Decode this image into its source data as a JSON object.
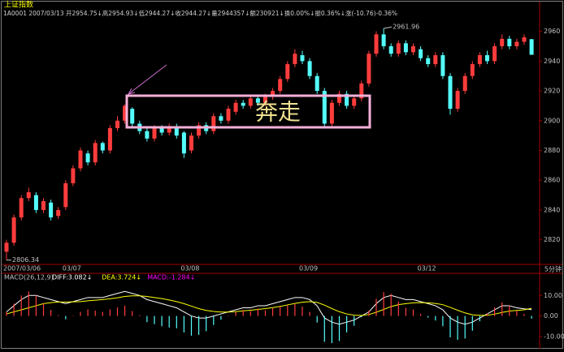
{
  "title": "上证指数",
  "info": "1A0001 2007/03/13 开2954.75↓高2954.93↓低2944.27↓收2944.27↓量2944357↓额230921↓换0.00%↓振0.36%↓涨(-10.76)-0.36%",
  "chart_data": [
    {
      "type": "candlestick",
      "categories": [
        "2007/03/06",
        null,
        null,
        null,
        null,
        null,
        null,
        null,
        "03/07",
        null,
        null,
        null,
        null,
        null,
        null,
        null,
        null,
        null,
        null,
        null,
        null,
        null,
        null,
        null,
        "03/08",
        null,
        null,
        null,
        null,
        null,
        null,
        null,
        null,
        null,
        null,
        null,
        null,
        null,
        null,
        null,
        "03/09",
        null,
        null,
        null,
        null,
        null,
        null,
        null,
        null,
        null,
        null,
        null,
        null,
        null,
        null,
        null,
        "03/12",
        null,
        null,
        null,
        null,
        null,
        null,
        null,
        null,
        null,
        null,
        null,
        null,
        null,
        null,
        null
      ],
      "open": [
        2812,
        2818,
        2835,
        2848,
        2850,
        2840,
        2845,
        2836,
        2842,
        2858,
        2868,
        2878,
        2872,
        2885,
        2880,
        2895,
        2900,
        2908,
        2898,
        2893,
        2888,
        2895,
        2892,
        2896,
        2892,
        2880,
        2890,
        2897,
        2893,
        2903,
        2900,
        2906,
        2912,
        2910,
        2915,
        2912,
        2916,
        2920,
        2928,
        2938,
        2944,
        2940,
        2930,
        2920,
        2898,
        2912,
        2918,
        2910,
        2915,
        2925,
        2945,
        2958,
        2950,
        2945,
        2952,
        2946,
        2948,
        2942,
        2938,
        2944,
        2930,
        2908,
        2920,
        2930,
        2938,
        2944,
        2940,
        2950,
        2955,
        2950,
        2953,
        2954.75
      ],
      "high": [
        2820,
        2837,
        2850,
        2855,
        2852,
        2848,
        2847,
        2842,
        2860,
        2870,
        2882,
        2880,
        2887,
        2886,
        2897,
        2903,
        2911,
        2909,
        2900,
        2895,
        2897,
        2897,
        2898,
        2898,
        2893,
        2892,
        2899,
        2899,
        2905,
        2905,
        2910,
        2914,
        2914,
        2917,
        2917,
        2918,
        2922,
        2930,
        2940,
        2948,
        2947,
        2942,
        2932,
        2922,
        2914,
        2920,
        2920,
        2917,
        2927,
        2947,
        2960,
        2961.96,
        2952,
        2954,
        2954,
        2952,
        2950,
        2944,
        2946,
        2946,
        2932,
        2922,
        2932,
        2940,
        2946,
        2947,
        2952,
        2958,
        2957,
        2955,
        2958,
        2954.93
      ],
      "low": [
        2806.34,
        2816,
        2833,
        2846,
        2838,
        2838,
        2833,
        2834,
        2840,
        2856,
        2866,
        2870,
        2870,
        2878,
        2878,
        2893,
        2898,
        2896,
        2891,
        2886,
        2886,
        2890,
        2890,
        2888,
        2875,
        2878,
        2888,
        2891,
        2891,
        2898,
        2898,
        2904,
        2908,
        2908,
        2910,
        2910,
        2914,
        2918,
        2926,
        2936,
        2938,
        2928,
        2918,
        2895,
        2896,
        2910,
        2908,
        2908,
        2913,
        2923,
        2943,
        2948,
        2943,
        2943,
        2944,
        2944,
        2940,
        2936,
        2936,
        2928,
        2904,
        2906,
        2918,
        2928,
        2936,
        2938,
        2938,
        2948,
        2948,
        2948,
        2951,
        2944.27
      ],
      "close": [
        2818,
        2835,
        2848,
        2852,
        2840,
        2846,
        2835,
        2840,
        2858,
        2868,
        2880,
        2872,
        2885,
        2880,
        2895,
        2900,
        2910,
        2898,
        2893,
        2888,
        2895,
        2892,
        2896,
        2890,
        2878,
        2890,
        2897,
        2893,
        2903,
        2900,
        2908,
        2912,
        2910,
        2915,
        2912,
        2916,
        2920,
        2928,
        2938,
        2945,
        2940,
        2930,
        2920,
        2898,
        2912,
        2918,
        2910,
        2915,
        2925,
        2945,
        2958,
        2950,
        2945,
        2952,
        2946,
        2950,
        2942,
        2938,
        2944,
        2930,
        2908,
        2920,
        2930,
        2938,
        2944,
        2940,
        2950,
        2955,
        2950,
        2953,
        2956,
        2944.27
      ],
      "up_color": "#ff3c3c",
      "down_color": "#54fcfc",
      "ylim": [
        2804,
        2968
      ],
      "yticks": [
        2820,
        2840,
        2860,
        2880,
        2900,
        2920,
        2940,
        2960
      ],
      "annotation": "奔走",
      "period": "5分钟"
    },
    {
      "type": "macd",
      "title": "MACD(26,12,9)",
      "series": [
        {
          "name": "DIFF:3.082↓",
          "color": "#ffffff",
          "values": [
            2,
            5,
            8,
            10,
            10,
            9,
            8,
            7,
            6,
            7,
            8,
            9,
            9,
            9,
            10,
            11,
            12,
            11,
            10,
            8,
            7,
            6,
            5,
            4,
            2,
            0,
            -1,
            -1,
            0,
            1,
            2,
            3,
            4,
            4,
            5,
            5,
            6,
            7,
            8,
            9,
            9,
            8,
            5,
            -1,
            -3,
            -4,
            -3,
            -2,
            0,
            2,
            6,
            9,
            10,
            9,
            8,
            8,
            7,
            6,
            5,
            3,
            -1,
            -3,
            -4,
            -3,
            -1,
            1,
            3,
            5,
            5,
            4,
            3.5,
            3.082
          ]
        },
        {
          "name": "DEA:3.724↓",
          "color": "#ffff00",
          "values": [
            1,
            2,
            3,
            4,
            5,
            6,
            6.5,
            6.8,
            6.8,
            6.9,
            7,
            7.4,
            7.7,
            8,
            8.4,
            8.9,
            9.5,
            9.8,
            9.8,
            9.5,
            9,
            8.5,
            7.8,
            7,
            6,
            4.8,
            3.6,
            2.7,
            2.2,
            1.9,
            1.9,
            2.1,
            2.5,
            2.8,
            3.2,
            3.6,
            4.1,
            4.7,
            5.4,
            6.1,
            6.7,
            7,
            6.6,
            5.3,
            3.6,
            2.1,
            1.0,
            0.4,
            0.3,
            0.7,
            1.8,
            3.2,
            4.6,
            5.5,
            6,
            6.4,
            6.5,
            6.4,
            6.1,
            5.5,
            4.2,
            2.8,
            1.5,
            0.6,
            0.3,
            0.4,
            0.9,
            1.7,
            2.4,
            2.7,
            3,
            3.724
          ]
        },
        {
          "name": "MACD:-1.284↓",
          "color": "#ff00ff",
          "up_color": "#ff3c3c",
          "down_color": "#54fcfc",
          "values": [
            2,
            6,
            10,
            12,
            10,
            6,
            3,
            0.4,
            -1.6,
            0.2,
            2,
            3.2,
            2.6,
            2,
            3.2,
            4.2,
            5,
            2.4,
            0.4,
            -3,
            -4,
            -5,
            -5.6,
            -6,
            -8,
            -9.6,
            -9.2,
            -7.4,
            -4.4,
            -1.8,
            0.2,
            1.8,
            3,
            2.4,
            3.6,
            2.8,
            3.8,
            4.6,
            5.2,
            5.8,
            4.6,
            2,
            -3.2,
            -12.6,
            -13.2,
            -12.2,
            -8,
            -4.8,
            -0.6,
            2.6,
            8.4,
            11.6,
            10.8,
            7,
            4,
            3.2,
            1,
            -0.8,
            -2.2,
            -5,
            -10.4,
            -11.6,
            -11,
            -7.2,
            -2.6,
            1.2,
            4.2,
            6.6,
            5.2,
            2.6,
            1,
            -1.284
          ]
        }
      ],
      "ylim": [
        -14,
        20
      ],
      "yticks": [
        {
          "value": 10,
          "label": "10.00"
        },
        {
          "value": 0,
          "label": "0.00"
        },
        {
          "value": -10,
          "label": "-10.00"
        }
      ]
    }
  ]
}
